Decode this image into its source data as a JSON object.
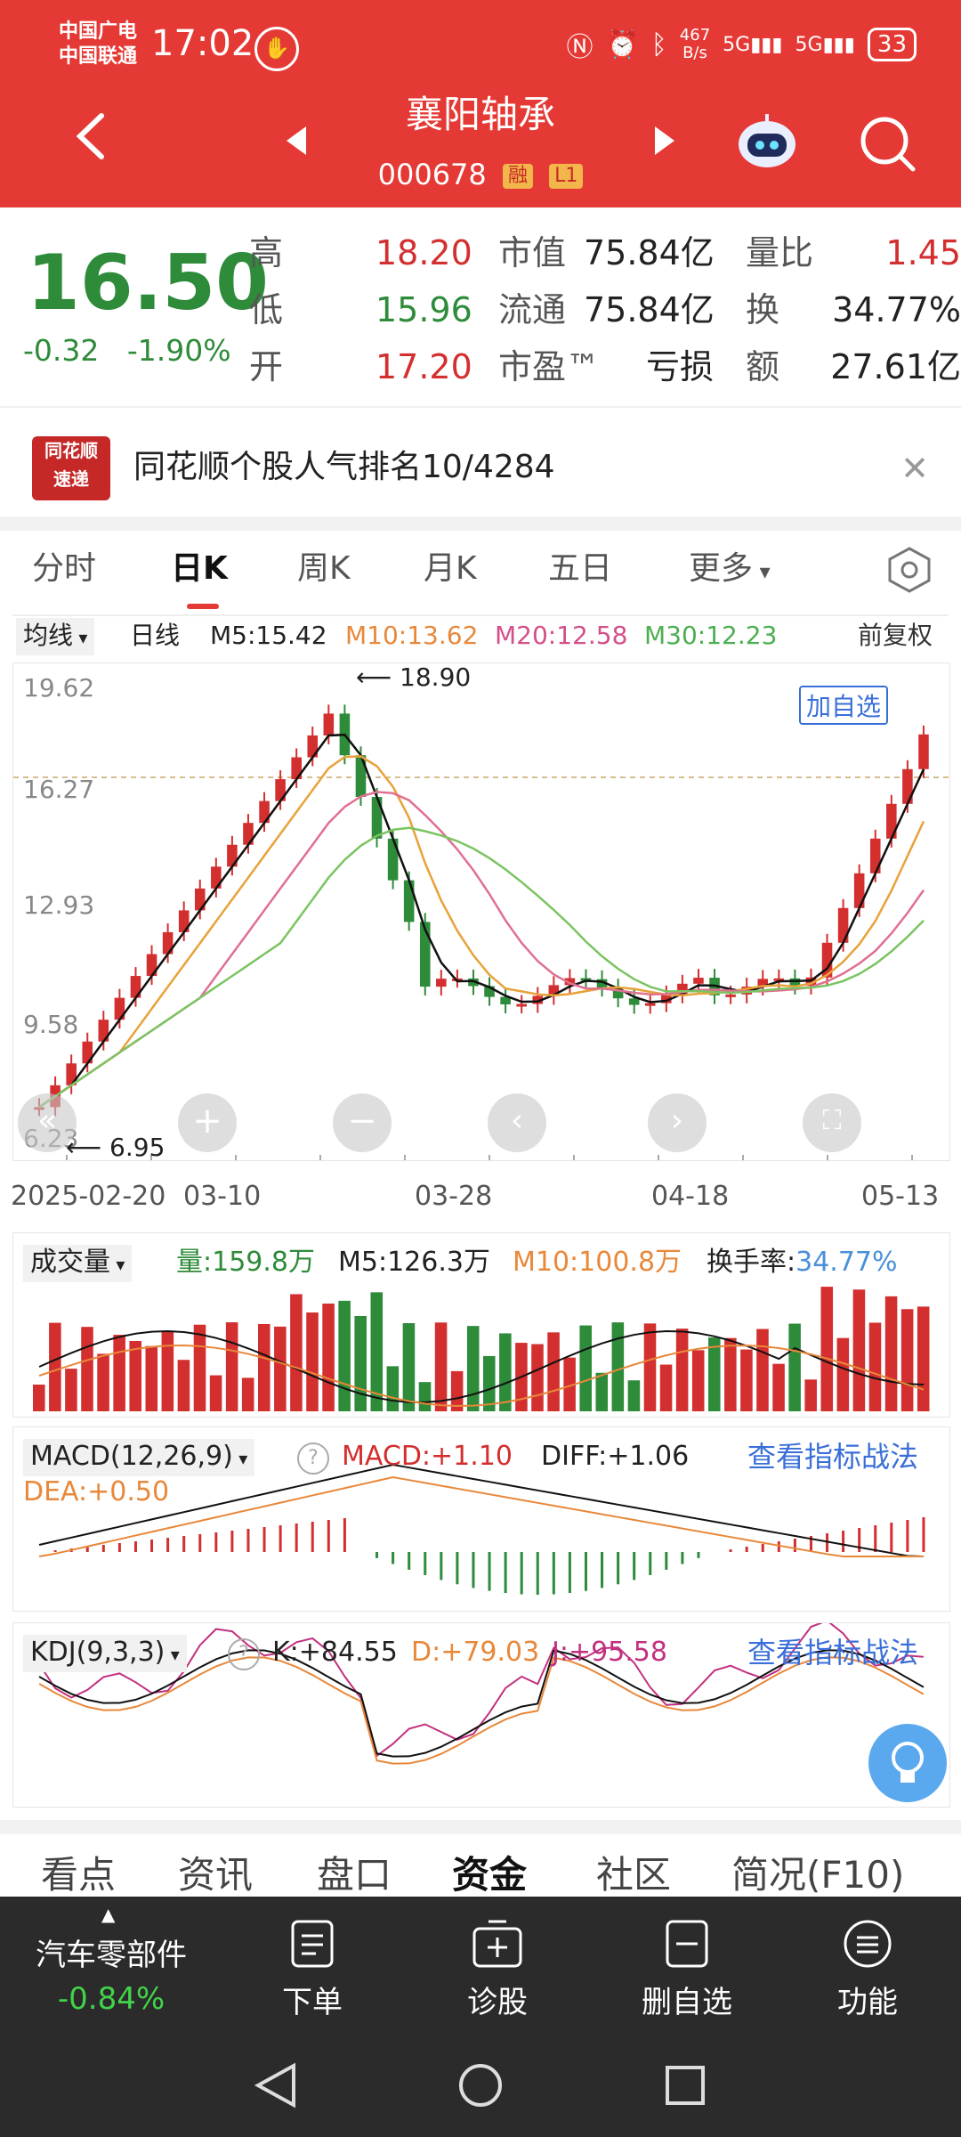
{
  "status_bar": {
    "carrier_1": "中国广电",
    "carrier_2": "中国联通",
    "time": "17:02",
    "net_speed_1": "467",
    "net_speed_2": "B/s",
    "signal_1": "5G",
    "signal_2": "5G",
    "battery": "33"
  },
  "header": {
    "title": "襄阳轴承",
    "code": "000678",
    "tag_rong": "融",
    "tag_level": "L1"
  },
  "quote": {
    "price": "16.50",
    "change": "-0.32",
    "change_pct": "-1.90%",
    "high_label": "高",
    "high": "18.20",
    "low_label": "低",
    "low": "15.96",
    "open_label": "开",
    "open": "17.20",
    "mktcap_label": "市值",
    "mktcap": "75.84亿",
    "float_label": "流通",
    "float": "75.84亿",
    "pe_label": "市盈™",
    "pe": "亏损",
    "volratio_label": "量比",
    "volratio": "1.45",
    "turnover_label": "换",
    "turnover": "34.77%",
    "amount_label": "额",
    "amount": "27.61亿"
  },
  "banner": {
    "logo_1": "同花顺",
    "logo_2": "速递",
    "text": "同花顺个股人气排名10/4284"
  },
  "tabs": [
    "分时",
    "日K",
    "周K",
    "月K",
    "五日",
    "更多"
  ],
  "ma": {
    "selector": "均线",
    "period": "日线",
    "m5": "M5:15.42",
    "m10": "M10:13.62",
    "m20": "M20:12.58",
    "m30": "M30:12.23",
    "adjust": "前复权"
  },
  "kline": {
    "y_labels": [
      "19.62",
      "16.27",
      "12.93",
      "9.58",
      "6.23"
    ],
    "max_label": "18.90",
    "min_label": "6.95",
    "add_watch": "加自选",
    "x_labels": [
      "2025-02-20",
      "03-10",
      "03-28",
      "04-18",
      "05-13"
    ]
  },
  "volume": {
    "selector": "成交量",
    "vol": "量:159.8万",
    "m5": "M5:126.3万",
    "m10": "M10:100.8万",
    "turnover_label": "换手率:",
    "turnover": "34.77%"
  },
  "macd": {
    "selector": "MACD(12,26,9)",
    "macd": "MACD:+1.10",
    "diff": "DIFF:+1.06",
    "dea": "DEA:+0.50",
    "link": "查看指标战法"
  },
  "kdj": {
    "selector": "KDJ(9,3,3)",
    "k": "K:+84.55",
    "d": "D:+79.03",
    "j": "J:+95.58",
    "link": "查看指标战法"
  },
  "bottom_tabs": [
    "看点",
    "资讯",
    "盘口",
    "资金",
    "社区",
    "简况(F10)"
  ],
  "nav": {
    "sector": "汽车零部件",
    "sector_chg": "-0.84%",
    "order": "下单",
    "diagnose": "诊股",
    "remove_watch": "删自选",
    "function": "功能"
  },
  "colors": {
    "up": "#d32f2f",
    "down": "#2e8b3a",
    "header": "#e53935"
  }
}
